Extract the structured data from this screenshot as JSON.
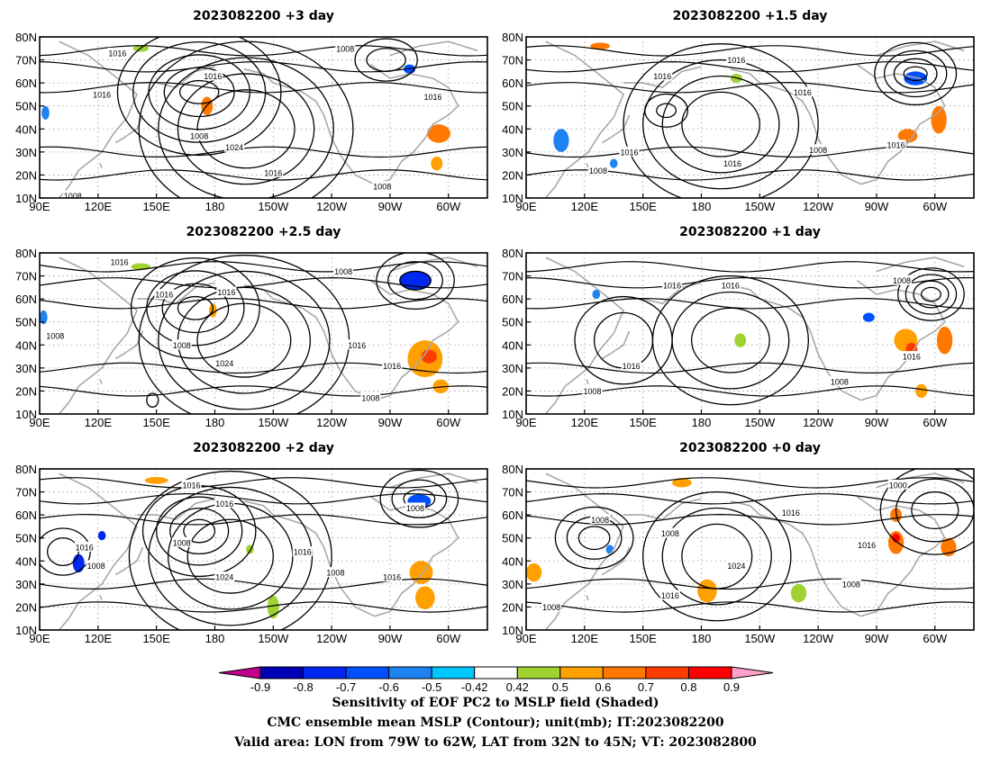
{
  "lon_labels": [
    "90E",
    "120E",
    "150E",
    "180",
    "150W",
    "120W",
    "90W",
    "60W"
  ],
  "lat_labels": [
    "10N",
    "20N",
    "30N",
    "40N",
    "50N",
    "60N",
    "70N",
    "80N"
  ],
  "panels": [
    {
      "title": "2023082200 +3 day",
      "isobars": [
        {
          "lon": 172,
          "lat": 56,
          "dlon": 10,
          "dlat": 5,
          "n": 5,
          "step": 8
        },
        {
          "lon": 196,
          "lat": 40,
          "dlon": 25,
          "dlat": 17,
          "n": 4,
          "step": 10
        },
        {
          "lon": 268,
          "lat": 70,
          "dlon": 10,
          "dlat": 5,
          "n": 2,
          "step": 6
        }
      ],
      "pressure_labels": [
        {
          "text": "1016",
          "lon": 130,
          "lat": 73
        },
        {
          "text": "1016",
          "lon": 122,
          "lat": 55
        },
        {
          "text": "1008",
          "lon": 172,
          "lat": 37
        },
        {
          "text": "1016",
          "lon": 179,
          "lat": 63
        },
        {
          "text": "1024",
          "lon": 190,
          "lat": 32
        },
        {
          "text": "1016",
          "lon": 210,
          "lat": 21
        },
        {
          "text": "1008",
          "lon": 247,
          "lat": 75
        },
        {
          "text": "1016",
          "lon": 292,
          "lat": 54
        },
        {
          "text": "1008",
          "lon": 266,
          "lat": 15
        },
        {
          "text": "1008",
          "lon": 107,
          "lat": 11
        }
      ],
      "shading": [
        {
          "lon": 176,
          "lat": 50,
          "dlon": 3,
          "dlat": 4,
          "value": 0.7
        },
        {
          "lon": 142,
          "lat": 75,
          "dlon": 4,
          "dlat": 1.5,
          "value": 0.5
        },
        {
          "lon": 295,
          "lat": 38,
          "dlon": 6,
          "dlat": 4,
          "value": 0.7
        },
        {
          "lon": 294,
          "lat": 25,
          "dlon": 3,
          "dlat": 3,
          "value": 0.6
        },
        {
          "lon": 280,
          "lat": 66,
          "dlon": 3,
          "dlat": 2,
          "value": -0.6
        },
        {
          "lon": 93,
          "lat": 47,
          "dlon": 2,
          "dlat": 3,
          "value": -0.5
        }
      ]
    },
    {
      "title": "2023082200 +1.5 day",
      "isobars": [
        {
          "lon": 190,
          "lat": 42,
          "dlon": 20,
          "dlat": 14,
          "n": 4,
          "step": 10
        },
        {
          "lon": 290,
          "lat": 64,
          "dlon": 6,
          "dlat": 3,
          "n": 4,
          "step": 5
        },
        {
          "lon": 162,
          "lat": 48,
          "dlon": 5,
          "dlat": 3,
          "n": 2,
          "step": 6
        }
      ],
      "pressure_labels": [
        {
          "text": "1016",
          "lon": 198,
          "lat": 70
        },
        {
          "text": "1016",
          "lon": 160,
          "lat": 63
        },
        {
          "text": "1016",
          "lon": 232,
          "lat": 56
        },
        {
          "text": "1016",
          "lon": 143,
          "lat": 30
        },
        {
          "text": "1016",
          "lon": 196,
          "lat": 25
        },
        {
          "text": "1008",
          "lon": 240,
          "lat": 31
        },
        {
          "text": "1016",
          "lon": 280,
          "lat": 33
        },
        {
          "text": "1008",
          "lon": 127,
          "lat": 22
        }
      ],
      "shading": [
        {
          "lon": 128,
          "lat": 76,
          "dlon": 5,
          "dlat": 1.5,
          "value": 0.7
        },
        {
          "lon": 290,
          "lat": 62,
          "dlon": 6,
          "dlat": 3,
          "value": -0.6
        },
        {
          "lon": 302,
          "lat": 44,
          "dlon": 4,
          "dlat": 6,
          "value": 0.7
        },
        {
          "lon": 286,
          "lat": 37,
          "dlon": 5,
          "dlat": 3,
          "value": 0.7
        },
        {
          "lon": 198,
          "lat": 62,
          "dlon": 3,
          "dlat": 2,
          "value": 0.5
        },
        {
          "lon": 108,
          "lat": 35,
          "dlon": 4,
          "dlat": 5,
          "value": -0.5
        },
        {
          "lon": 135,
          "lat": 25,
          "dlon": 2,
          "dlat": 2,
          "value": -0.5
        }
      ]
    },
    {
      "title": "2023082200 +2.5 day",
      "isobars": [
        {
          "lon": 170,
          "lat": 56,
          "dlon": 9,
          "dlat": 5,
          "n": 4,
          "step": 8
        },
        {
          "lon": 195,
          "lat": 42,
          "dlon": 24,
          "dlat": 16,
          "n": 4,
          "step": 10
        },
        {
          "lon": 283,
          "lat": 68,
          "dlon": 8,
          "dlat": 4,
          "n": 3,
          "step": 6
        },
        {
          "lon": 148,
          "lat": 16,
          "dlon": 3,
          "dlat": 3,
          "n": 1,
          "step": 4
        }
      ],
      "pressure_labels": [
        {
          "text": "1016",
          "lon": 131,
          "lat": 76
        },
        {
          "text": "1016",
          "lon": 154,
          "lat": 62
        },
        {
          "text": "1016",
          "lon": 186,
          "lat": 63
        },
        {
          "text": "1008",
          "lon": 163,
          "lat": 40
        },
        {
          "text": "1024",
          "lon": 185,
          "lat": 32
        },
        {
          "text": "1008",
          "lon": 98,
          "lat": 44
        },
        {
          "text": "1008",
          "lon": 246,
          "lat": 72
        },
        {
          "text": "1016",
          "lon": 253,
          "lat": 40
        },
        {
          "text": "1016",
          "lon": 271,
          "lat": 31
        },
        {
          "text": "1008",
          "lon": 260,
          "lat": 17
        }
      ],
      "shading": [
        {
          "lon": 283,
          "lat": 68,
          "dlon": 8,
          "dlat": 4,
          "value": -0.7
        },
        {
          "lon": 142,
          "lat": 74,
          "dlon": 5,
          "dlat": 1.5,
          "value": 0.5
        },
        {
          "lon": 288,
          "lat": 34,
          "dlon": 9,
          "dlat": 8,
          "value": 0.6
        },
        {
          "lon": 290,
          "lat": 35,
          "dlon": 4,
          "dlat": 3,
          "value": 0.8
        },
        {
          "lon": 296,
          "lat": 22,
          "dlon": 4,
          "dlat": 3,
          "value": 0.6
        },
        {
          "lon": 179,
          "lat": 55,
          "dlon": 2,
          "dlat": 3,
          "value": 0.6
        },
        {
          "lon": 92,
          "lat": 52,
          "dlon": 2,
          "dlat": 3,
          "value": -0.5
        }
      ]
    },
    {
      "title": "2023082200 +1 day",
      "isobars": [
        {
          "lon": 195,
          "lat": 42,
          "dlon": 20,
          "dlat": 14,
          "n": 3,
          "step": 10
        },
        {
          "lon": 140,
          "lat": 42,
          "dlon": 15,
          "dlat": 12,
          "n": 2,
          "step": 10
        },
        {
          "lon": 298,
          "lat": 62,
          "dlon": 5,
          "dlat": 3,
          "n": 4,
          "step": 4
        }
      ],
      "pressure_labels": [
        {
          "text": "1016",
          "lon": 165,
          "lat": 66
        },
        {
          "text": "1016",
          "lon": 195,
          "lat": 66
        },
        {
          "text": "1008",
          "lon": 283,
          "lat": 68
        },
        {
          "text": "1016",
          "lon": 144,
          "lat": 31
        },
        {
          "text": "1008",
          "lon": 124,
          "lat": 20
        },
        {
          "text": "1008",
          "lon": 251,
          "lat": 24
        },
        {
          "text": "1016",
          "lon": 288,
          "lat": 35
        }
      ],
      "shading": [
        {
          "lon": 285,
          "lat": 42,
          "dlon": 6,
          "dlat": 5,
          "value": 0.6
        },
        {
          "lon": 288,
          "lat": 38,
          "dlon": 3,
          "dlat": 3,
          "value": 0.8
        },
        {
          "lon": 305,
          "lat": 42,
          "dlon": 4,
          "dlat": 6,
          "value": 0.7
        },
        {
          "lon": 293,
          "lat": 20,
          "dlon": 3,
          "dlat": 3,
          "value": 0.6
        },
        {
          "lon": 266,
          "lat": 52,
          "dlon": 3,
          "dlat": 2,
          "value": -0.6
        },
        {
          "lon": 126,
          "lat": 62,
          "dlon": 2,
          "dlat": 2,
          "value": -0.5
        },
        {
          "lon": 200,
          "lat": 42,
          "dlon": 3,
          "dlat": 3,
          "value": 0.5
        }
      ]
    },
    {
      "title": "2023082200 +2 day",
      "isobars": [
        {
          "lon": 172,
          "lat": 53,
          "dlon": 8,
          "dlat": 5,
          "n": 4,
          "step": 7
        },
        {
          "lon": 188,
          "lat": 42,
          "dlon": 22,
          "dlat": 16,
          "n": 4,
          "step": 10
        },
        {
          "lon": 285,
          "lat": 67,
          "dlon": 8,
          "dlat": 4,
          "n": 3,
          "step": 6
        },
        {
          "lon": 102,
          "lat": 44,
          "dlon": 8,
          "dlat": 6,
          "n": 2,
          "step": 6
        }
      ],
      "pressure_labels": [
        {
          "text": "1016",
          "lon": 168,
          "lat": 73
        },
        {
          "text": "1016",
          "lon": 185,
          "lat": 65
        },
        {
          "text": "1008",
          "lon": 163,
          "lat": 48
        },
        {
          "text": "1024",
          "lon": 185,
          "lat": 33
        },
        {
          "text": "1016",
          "lon": 113,
          "lat": 46
        },
        {
          "text": "1008",
          "lon": 119,
          "lat": 38
        },
        {
          "text": "1016",
          "lon": 225,
          "lat": 44
        },
        {
          "text": "1008",
          "lon": 242,
          "lat": 35
        },
        {
          "text": "1016",
          "lon": 271,
          "lat": 33
        },
        {
          "text": "1008",
          "lon": 283,
          "lat": 63
        }
      ],
      "shading": [
        {
          "lon": 110,
          "lat": 39,
          "dlon": 3,
          "dlat": 4,
          "value": -0.7
        },
        {
          "lon": 122,
          "lat": 51,
          "dlon": 2,
          "dlat": 2,
          "value": -0.7
        },
        {
          "lon": 285,
          "lat": 66,
          "dlon": 6,
          "dlat": 3,
          "value": -0.6
        },
        {
          "lon": 286,
          "lat": 35,
          "dlon": 6,
          "dlat": 5,
          "value": 0.6
        },
        {
          "lon": 288,
          "lat": 24,
          "dlon": 5,
          "dlat": 5,
          "value": 0.6
        },
        {
          "lon": 210,
          "lat": 20,
          "dlon": 3,
          "dlat": 5,
          "value": 0.5
        },
        {
          "lon": 150,
          "lat": 75,
          "dlon": 6,
          "dlat": 1.5,
          "value": 0.6
        },
        {
          "lon": 198,
          "lat": 45,
          "dlon": 2,
          "dlat": 2,
          "value": 0.5
        }
      ]
    },
    {
      "title": "2023082200 +0 day",
      "isobars": [
        {
          "lon": 188,
          "lat": 42,
          "dlon": 18,
          "dlat": 14,
          "n": 3,
          "step": 10
        },
        {
          "lon": 125,
          "lat": 50,
          "dlon": 8,
          "dlat": 5,
          "n": 3,
          "step": 6
        },
        {
          "lon": 300,
          "lat": 62,
          "dlon": 12,
          "dlat": 8,
          "n": 3,
          "step": 8
        }
      ],
      "pressure_labels": [
        {
          "text": "1008",
          "lon": 128,
          "lat": 58
        },
        {
          "text": "1008",
          "lon": 164,
          "lat": 52
        },
        {
          "text": "1016",
          "lon": 226,
          "lat": 61
        },
        {
          "text": "1024",
          "lon": 198,
          "lat": 38
        },
        {
          "text": "1016",
          "lon": 164,
          "lat": 25
        },
        {
          "text": "1008",
          "lon": 103,
          "lat": 20
        },
        {
          "text": "1008",
          "lon": 257,
          "lat": 30
        },
        {
          "text": "1016",
          "lon": 265,
          "lat": 47
        },
        {
          "text": "1000",
          "lon": 281,
          "lat": 73
        }
      ],
      "shading": [
        {
          "lon": 280,
          "lat": 48,
          "dlon": 4,
          "dlat": 5,
          "value": 0.7
        },
        {
          "lon": 280,
          "lat": 50,
          "dlon": 2,
          "dlat": 2,
          "value": 0.9
        },
        {
          "lon": 280,
          "lat": 60,
          "dlon": 3,
          "dlat": 3,
          "value": 0.7
        },
        {
          "lon": 183,
          "lat": 27,
          "dlon": 5,
          "dlat": 5,
          "value": 0.6
        },
        {
          "lon": 94,
          "lat": 35,
          "dlon": 4,
          "dlat": 4,
          "value": 0.6
        },
        {
          "lon": 307,
          "lat": 46,
          "dlon": 4,
          "dlat": 4,
          "value": 0.7
        },
        {
          "lon": 230,
          "lat": 26,
          "dlon": 4,
          "dlat": 4,
          "value": 0.5
        },
        {
          "lon": 133,
          "lat": 45,
          "dlon": 2,
          "dlat": 2,
          "value": -0.5
        },
        {
          "lon": 170,
          "lat": 74,
          "dlon": 5,
          "dlat": 2,
          "value": 0.6
        }
      ]
    }
  ],
  "colorbar": {
    "labels": [
      "-0.9",
      "-0.8",
      "-0.7",
      "-0.6",
      "-0.5",
      "-0.42",
      "0.42",
      "0.5",
      "0.6",
      "0.7",
      "0.8",
      "0.9"
    ],
    "colors": [
      "#c0008c",
      "#0000b4",
      "#0028f0",
      "#0050ff",
      "#1e82f0",
      "#00c8ff",
      "#ffffff",
      "#a0d232",
      "#ffa000",
      "#ff7800",
      "#ff3c00",
      "#ff0000",
      "#ffa0c8"
    ]
  },
  "footer": {
    "line1": "Sensitivity of EOF PC2 to MSLP field (Shaded)",
    "line2": "CMC ensemble mean MSLP (Contour); unit(mb); IT:2023082200",
    "line3": "Valid area: LON from 79W to 62W, LAT from 32N to 45N; VT: 2023082800"
  }
}
